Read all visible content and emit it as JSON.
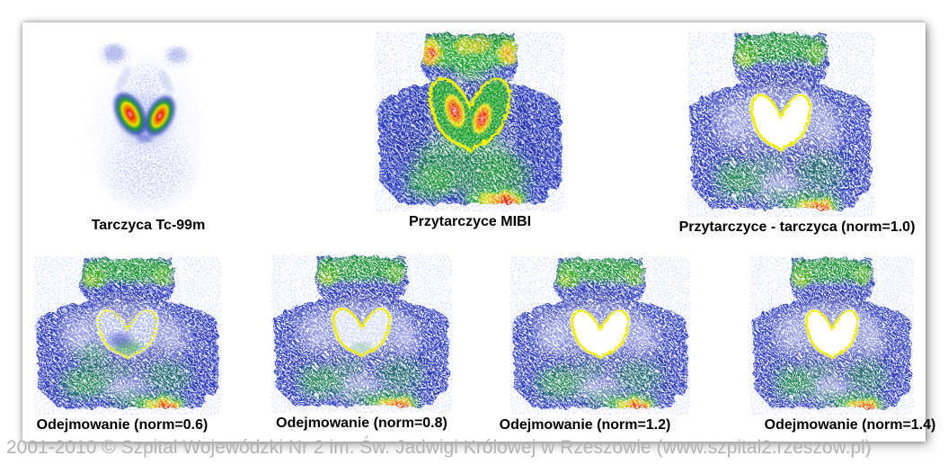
{
  "watermark": "2001-2010 © Szpital Wojewódzki Nr 2 im. Św. Jadwigi Królowej w Rzeszowie (www.szpital2.rzeszow.pl)",
  "palette": {
    "background": "#ffffff",
    "label": "#000000",
    "watermark": "#b3b3b3",
    "contour": "#f2ee00",
    "hot_red": "#e81e10",
    "hot_orange": "#f08300",
    "hot_yellow": "#ecdf00",
    "hot_green": "#1fa02c",
    "body_blue": "#2e3ec0",
    "body_dark_blue": "#1c2aa0",
    "speckle_blue": "#5560c8"
  },
  "scans": [
    {
      "id": "tarczyca-tc99m",
      "label": "Tarczyca Tc-99m",
      "row": 1
    },
    {
      "id": "przytarczyce-mibi",
      "label": "Przytarczyce MIBI",
      "row": 1
    },
    {
      "id": "przytarczyce-minus-tarczyca",
      "label": "Przytarczyce - tarczyca (norm=1.0)",
      "row": 1
    },
    {
      "id": "odejmowanie-06",
      "label": "Odejmowanie (norm=0.6)",
      "row": 2
    },
    {
      "id": "odejmowanie-08",
      "label": "Odejmowanie (norm=0.8)",
      "row": 2
    },
    {
      "id": "odejmowanie-12",
      "label": "Odejmowanie (norm=1.2)",
      "row": 2
    },
    {
      "id": "odejmowanie-14",
      "label": "Odejmowanie (norm=1.4)",
      "row": 2
    }
  ]
}
